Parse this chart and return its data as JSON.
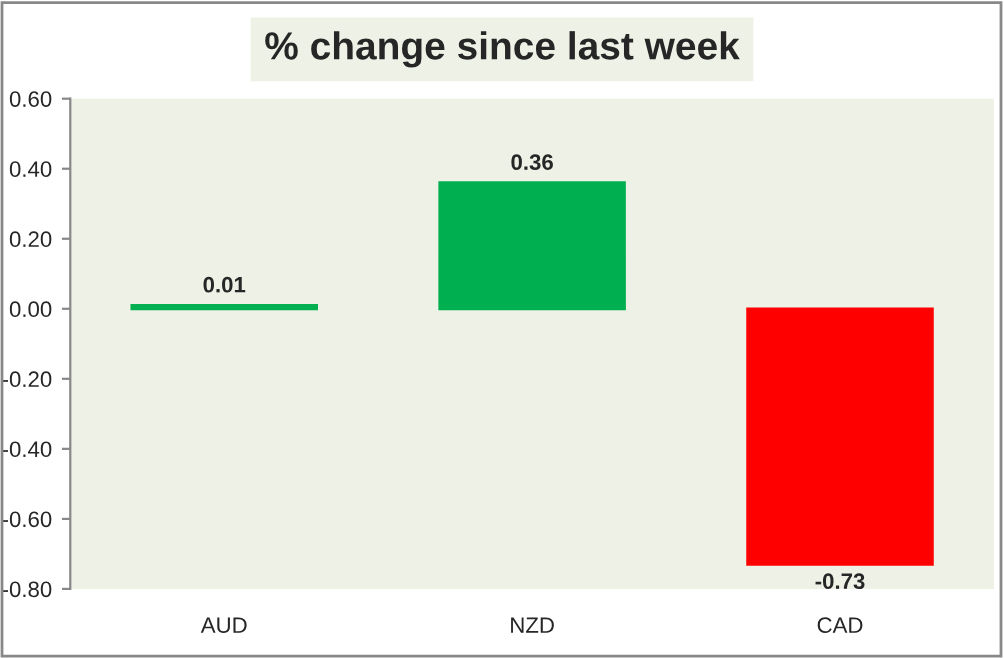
{
  "chart_data": {
    "type": "bar",
    "title": "% change since last week",
    "categories": [
      "AUD",
      "NZD",
      "CAD"
    ],
    "values": [
      0.01,
      0.36,
      -0.73
    ],
    "colors": [
      "#00b050",
      "#00b050",
      "#ff0000"
    ],
    "ylim": [
      -0.8,
      0.6
    ],
    "yticks": [
      {
        "value": -0.8,
        "label": "-0.80"
      },
      {
        "value": -0.6,
        "label": "-0.60"
      },
      {
        "value": -0.4,
        "label": "-0.40"
      },
      {
        "value": -0.2,
        "label": "-0.20"
      },
      {
        "value": 0,
        "label": "0.00"
      },
      {
        "value": 0.2,
        "label": "0.20"
      },
      {
        "value": 0.4,
        "label": "0.40"
      },
      {
        "value": 0.6,
        "label": "0.60"
      }
    ],
    "data_labels": true,
    "grid": false,
    "legend": false
  }
}
